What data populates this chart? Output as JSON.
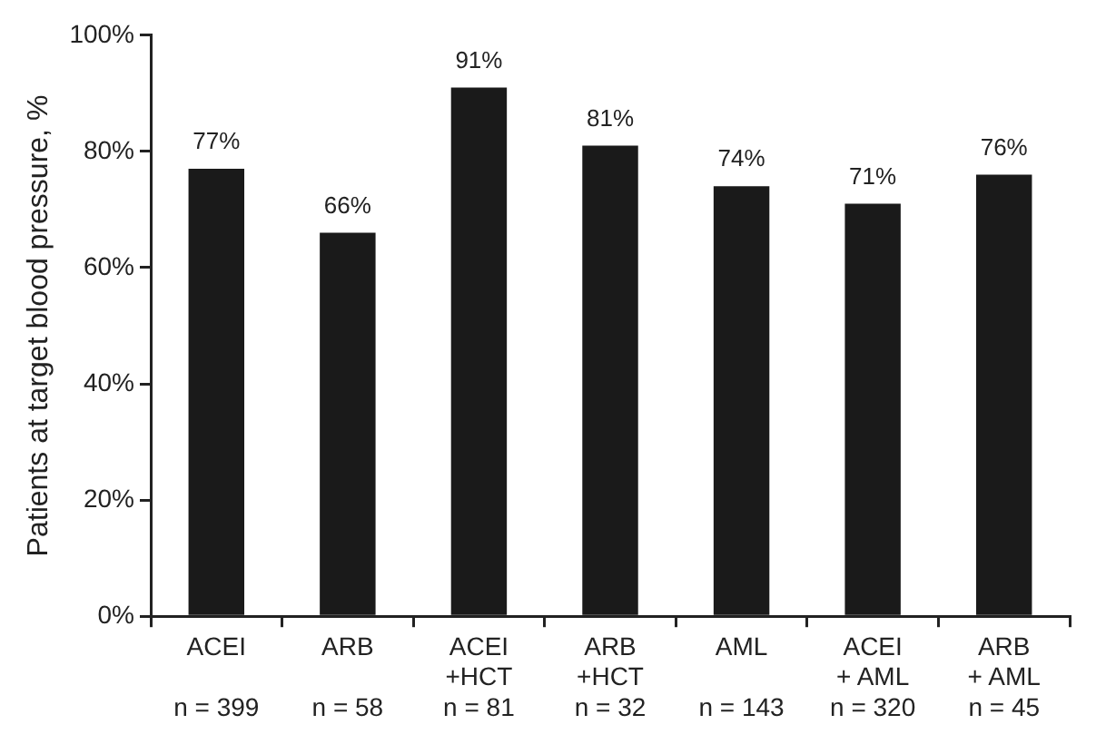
{
  "chart_data": {
    "type": "bar",
    "ylabel": "Patients at target blood pressure, %",
    "categories": [
      "ACEI\n\nn = 399",
      "ARB\n\nn = 58",
      "ACEI\n+HCT\nn = 81",
      "ARB\n+HCT\nn = 32",
      "AML\n\nn = 143",
      "ACEI\n+ AML\nn = 320",
      "ARB\n+ AML\nn = 45"
    ],
    "values": [
      77,
      66,
      91,
      81,
      74,
      71,
      76
    ],
    "value_labels": [
      "77%",
      "66%",
      "91%",
      "81%",
      "74%",
      "71%",
      "76%"
    ],
    "color": "#1a1a1a",
    "ylim": [
      0,
      100
    ],
    "yticks": [
      {
        "value": 0,
        "label": "0%"
      },
      {
        "value": 20,
        "label": "20%"
      },
      {
        "value": 40,
        "label": "40%"
      },
      {
        "value": 60,
        "label": "60%"
      },
      {
        "value": 80,
        "label": "80%"
      },
      {
        "value": 100,
        "label": "100%"
      }
    ],
    "grid": false,
    "legend": false
  }
}
